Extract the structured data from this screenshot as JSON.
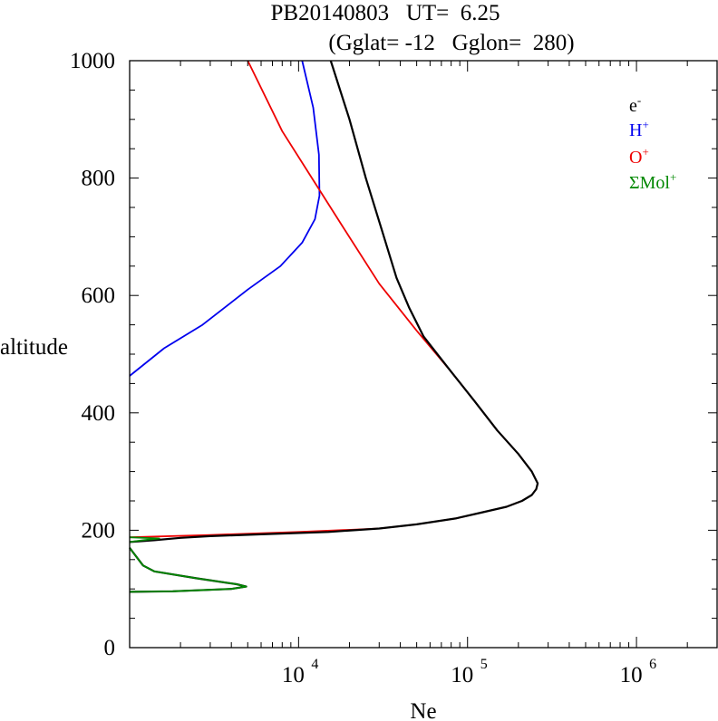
{
  "chart_data": {
    "type": "line",
    "title_line1": "PB20140803   UT=  6.25",
    "title_line2": "(Gglat= -12   Gglon=  280)",
    "xlabel": "Ne",
    "ylabel": "altitude",
    "x_scale": "log",
    "xlim": [
      1000,
      3000000
    ],
    "ylim": [
      0,
      1000
    ],
    "x_ticks": [
      {
        "base": "10",
        "exp": "4",
        "value": 10000
      },
      {
        "base": "10",
        "exp": "5",
        "value": 100000
      },
      {
        "base": "10",
        "exp": "6",
        "value": 1000000
      }
    ],
    "y_ticks": [
      "0",
      "200",
      "400",
      "600",
      "800",
      "1000"
    ],
    "legend_position": "top-right",
    "series": [
      {
        "name": "e",
        "sup": "-",
        "color": "#000000",
        "points": [
          [
            1000,
            95
          ],
          [
            1800,
            96
          ],
          [
            4000,
            100
          ],
          [
            4900,
            104
          ],
          [
            4300,
            108
          ],
          [
            2500,
            118
          ],
          [
            1400,
            130
          ],
          [
            1200,
            140
          ],
          [
            1050,
            162
          ],
          [
            1000,
            170
          ],
          null,
          [
            1000,
            180
          ],
          [
            1400,
            183
          ],
          [
            2000,
            187
          ],
          [
            3000,
            190
          ],
          [
            6000,
            193
          ],
          [
            15000,
            197
          ],
          [
            30000,
            203
          ],
          [
            50000,
            210
          ],
          [
            85000,
            220
          ],
          [
            120000,
            230
          ],
          [
            170000,
            240
          ],
          [
            210000,
            250
          ],
          [
            240000,
            260
          ],
          [
            255000,
            270
          ],
          [
            260000,
            280
          ],
          [
            240000,
            300
          ],
          [
            200000,
            330
          ],
          [
            150000,
            370
          ],
          [
            110000,
            420
          ],
          [
            80000,
            470
          ],
          [
            55000,
            530
          ],
          [
            45000,
            580
          ],
          [
            38000,
            630
          ],
          [
            32000,
            700
          ],
          [
            25000,
            800
          ],
          [
            20000,
            900
          ],
          [
            15500,
            1000
          ]
        ]
      },
      {
        "name": "H",
        "sup": "+",
        "color": "#0000ee",
        "points": [
          [
            1000,
            463
          ],
          [
            1600,
            510
          ],
          [
            2700,
            550
          ],
          [
            5000,
            610
          ],
          [
            7800,
            650
          ],
          [
            10500,
            690
          ],
          [
            12500,
            730
          ],
          [
            13300,
            770
          ],
          [
            13200,
            840
          ],
          [
            12200,
            920
          ],
          [
            10500,
            1000
          ]
        ]
      },
      {
        "name": "O",
        "sup": "+",
        "color": "#ee0000",
        "points": [
          [
            1000,
            188
          ],
          [
            3000,
            192
          ],
          [
            10000,
            197
          ],
          [
            30000,
            203
          ],
          [
            50000,
            210
          ],
          [
            85000,
            220
          ],
          [
            120000,
            230
          ],
          [
            170000,
            240
          ],
          [
            210000,
            250
          ],
          [
            240000,
            260
          ],
          [
            255000,
            270
          ],
          [
            260000,
            280
          ],
          [
            240000,
            300
          ],
          [
            200000,
            330
          ],
          [
            150000,
            370
          ],
          [
            110000,
            420
          ],
          [
            80000,
            470
          ],
          [
            50000,
            540
          ],
          [
            30000,
            620
          ],
          [
            18000,
            720
          ],
          [
            12000,
            800
          ],
          [
            8000,
            880
          ],
          [
            5000,
            1000
          ]
        ]
      },
      {
        "name": "ΣMol",
        "sup": "+",
        "color": "#008800",
        "points": [
          [
            1000,
            95
          ],
          [
            1800,
            96
          ],
          [
            4000,
            100
          ],
          [
            4900,
            104
          ],
          [
            4300,
            108
          ],
          [
            2500,
            118
          ],
          [
            1400,
            130
          ],
          [
            1200,
            140
          ],
          [
            1050,
            162
          ],
          [
            1000,
            170
          ],
          null,
          [
            1000,
            180
          ],
          [
            1200,
            183
          ],
          [
            1500,
            186
          ],
          [
            1000,
            188
          ]
        ]
      }
    ]
  }
}
